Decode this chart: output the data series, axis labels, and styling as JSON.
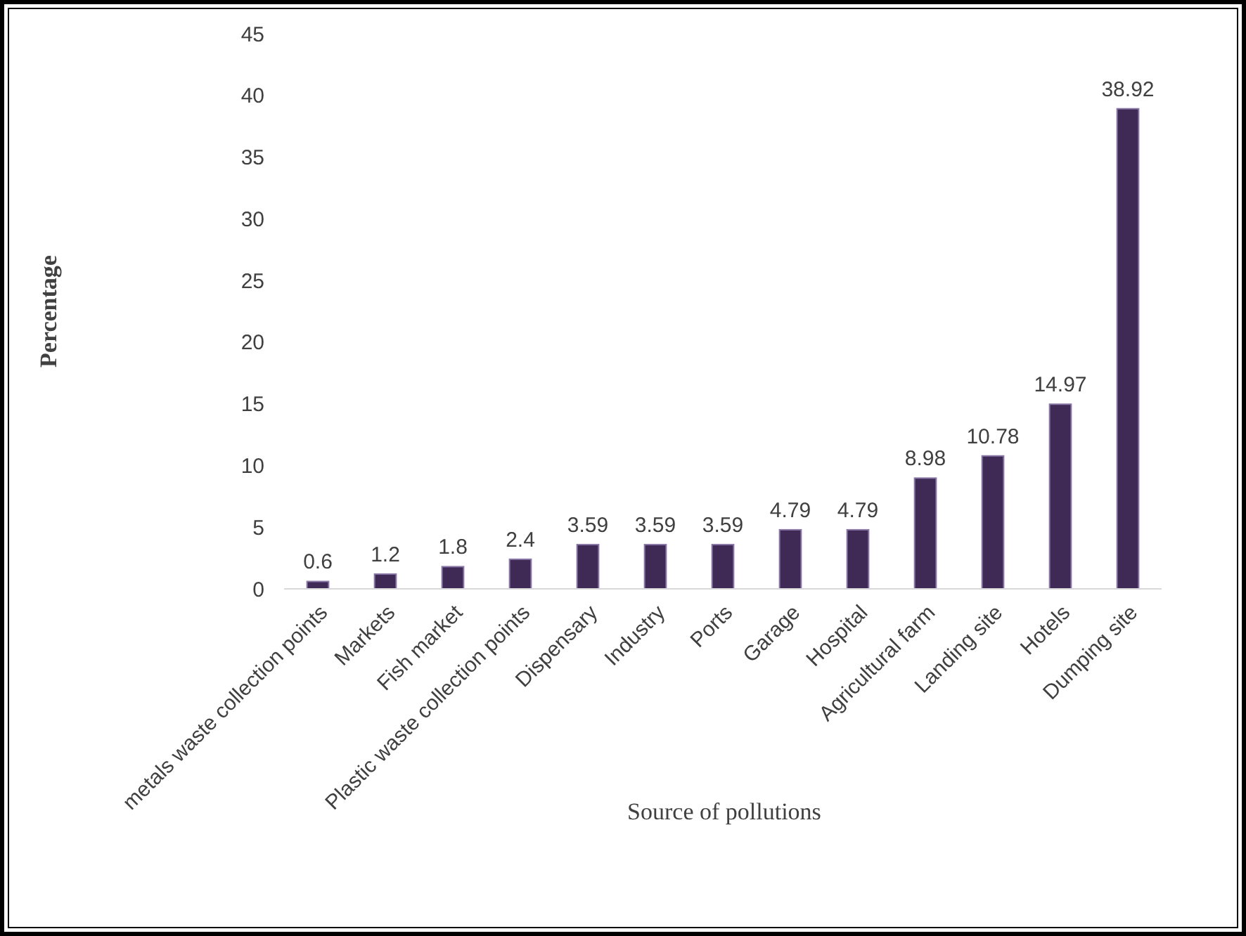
{
  "chart_data": {
    "type": "bar",
    "xlabel": "Source of pollutions",
    "ylabel": "Percentage",
    "categories": [
      "metals waste collection points",
      "Markets",
      "Fish market",
      "Plastic waste collection points",
      "Dispensary",
      "Industry",
      "Ports",
      "Garage",
      "Hospital",
      "Agricultural farm",
      "Landing site",
      "Hotels",
      "Dumping site"
    ],
    "values": [
      0.6,
      1.2,
      1.8,
      2.4,
      3.59,
      3.59,
      3.59,
      4.79,
      4.79,
      8.98,
      10.78,
      14.97,
      38.92
    ],
    "color": "#3f2a56",
    "ylim": [
      0,
      45
    ],
    "yticks": [
      0,
      5,
      10,
      15,
      20,
      25,
      30,
      35,
      40,
      45
    ],
    "grid": false,
    "data_labels": true
  }
}
